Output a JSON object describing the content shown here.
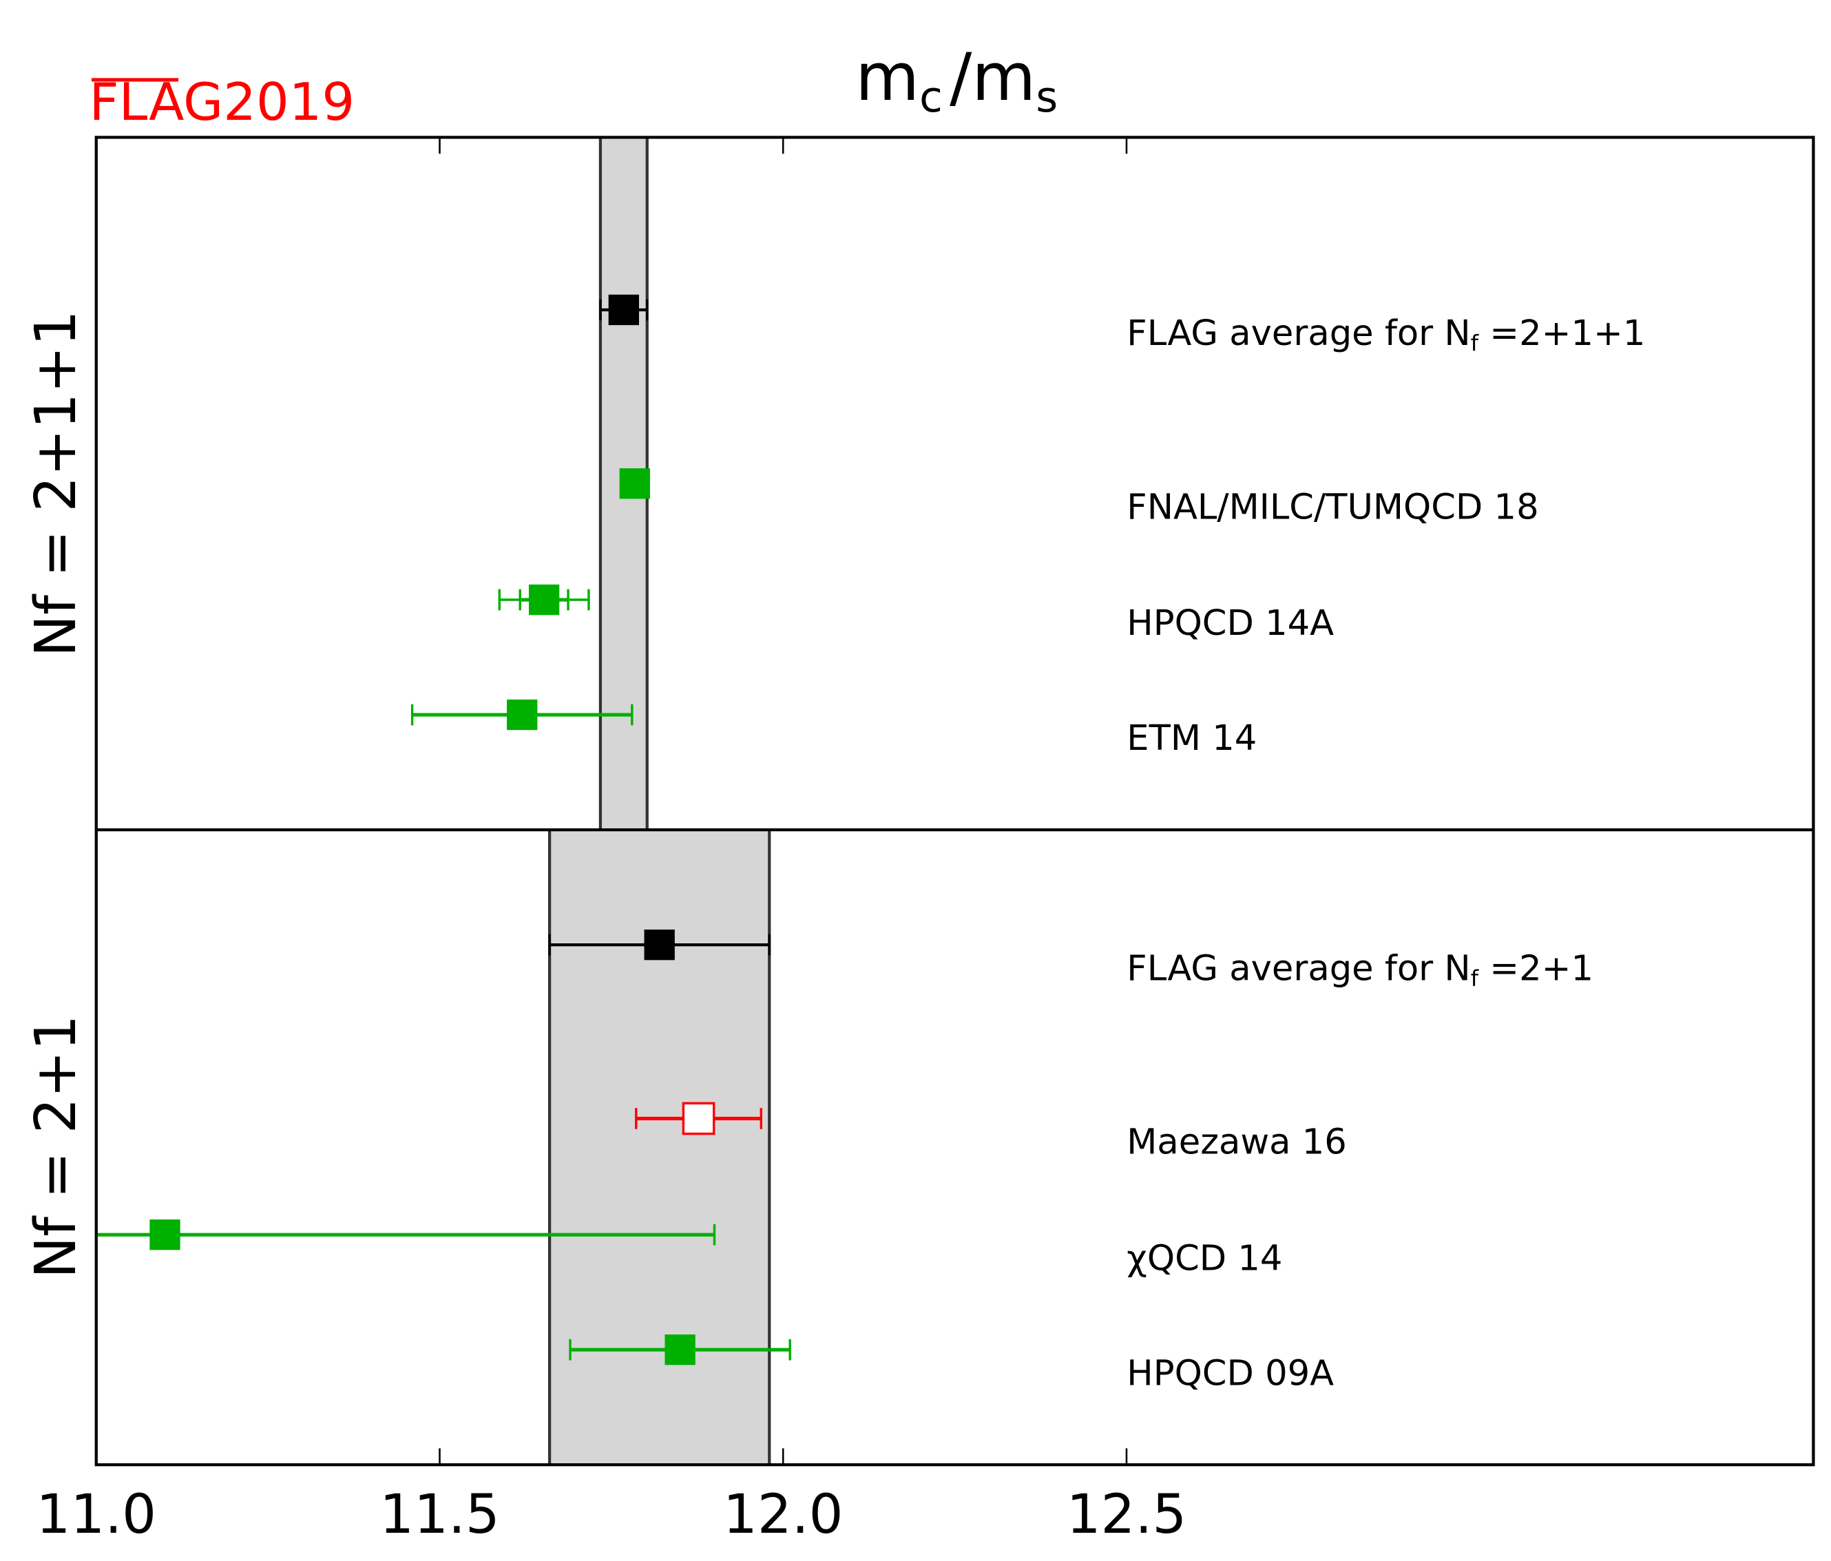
{
  "chart_data": {
    "type": "scatter",
    "title": "mc/ms",
    "title_parts": {
      "m1": "m",
      "sub1": "c",
      "slash": "/",
      "m2": "m",
      "sub2": "s"
    },
    "logo": "FLAG2019",
    "xlabel": "",
    "xlim": [
      11.0,
      13.5
    ],
    "xticks": [
      11.0,
      11.5,
      12.0,
      12.5
    ],
    "xtick_labels": [
      "11.0",
      "11.5",
      "12.0",
      "12.5"
    ],
    "grid": false,
    "panels": [
      {
        "ylabel": "Nf = 2+1+1",
        "ylabel_parts": {
          "n": "N",
          "sub": "f",
          "rest": " =2+1+1"
        },
        "band": {
          "low": 11.734,
          "high": 11.802
        },
        "entries": [
          {
            "label": "FLAG average for Nf =2+1+1",
            "label_parts": {
              "pre": "FLAG average for N",
              "sub": "f",
              "post": " =2+1+1"
            },
            "value": 11.768,
            "err_low": 11.734,
            "err_high": 11.802,
            "color": "#000000",
            "filled": true
          },
          {
            "label": "FNAL/MILC/TUMQCD 18",
            "value": 11.784,
            "err_low": 11.764,
            "err_high": 11.804,
            "color": "#00b000",
            "filled": true
          },
          {
            "label": "HPQCD 14A",
            "value": 11.652,
            "err_low": 11.617,
            "err_high": 11.687,
            "err2_low": 11.587,
            "err2_high": 11.717,
            "color": "#00b000",
            "filled": true
          },
          {
            "label": "ETM 14",
            "value": 11.62,
            "err_low": 11.46,
            "err_high": 11.78,
            "color": "#00b000",
            "filled": true
          }
        ]
      },
      {
        "ylabel": "Nf = 2+1",
        "ylabel_parts": {
          "n": "N",
          "sub": "f",
          "rest": " =2+1"
        },
        "band": {
          "low": 11.66,
          "high": 11.98
        },
        "entries": [
          {
            "label": "FLAG average for Nf =2+1",
            "label_parts": {
              "pre": "FLAG average for N",
              "sub": "f",
              "post": " =2+1"
            },
            "value": 11.82,
            "err_low": 11.66,
            "err_high": 11.98,
            "color": "#000000",
            "filled": true
          },
          {
            "label": "Maezawa 16",
            "value": 11.877,
            "err_low": 11.786,
            "err_high": 11.968,
            "color": "#ff0000",
            "filled": false
          },
          {
            "label": "χQCD 14",
            "value": 11.1,
            "err_low": 10.3,
            "err_high": 11.9,
            "color": "#00b000",
            "filled": true
          },
          {
            "label": "HPQCD 09A",
            "value": 11.85,
            "err_low": 11.69,
            "err_high": 12.01,
            "color": "#00b000",
            "filled": true
          }
        ]
      }
    ]
  }
}
